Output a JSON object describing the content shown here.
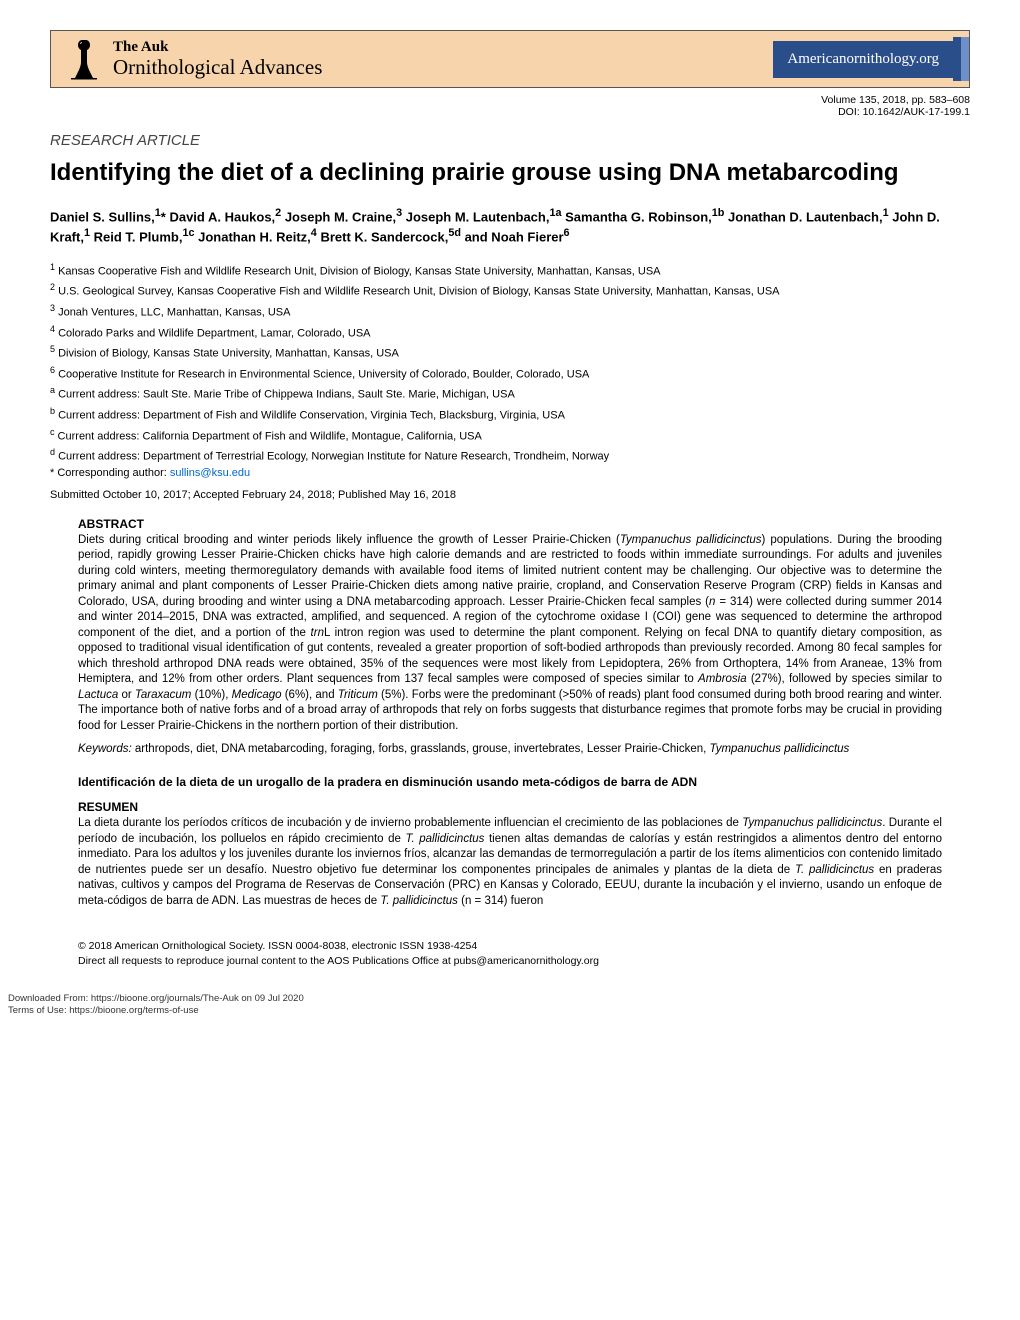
{
  "banner": {
    "the_auk": "The Auk",
    "subtitle": "Ornithological Advances",
    "url": "Americanornithology.org"
  },
  "volume_line": "Volume 135, 2018, pp. 583–608",
  "doi_line": "DOI: 10.1642/AUK-17-199.1",
  "article_type": "RESEARCH ARTICLE",
  "title": "Identifying the diet of a declining prairie grouse using DNA metabarcoding",
  "authors_html": "Daniel S. Sullins,<sup>1</sup>* David A. Haukos,<sup>2</sup> Joseph M. Craine,<sup>3</sup> Joseph M. Lautenbach,<sup>1a</sup> Samantha G. Robinson,<sup>1b</sup> Jonathan D. Lautenbach,<sup>1</sup> John D. Kraft,<sup>1</sup> Reid T. Plumb,<sup>1c</sup> Jonathan H. Reitz,<sup>4</sup> Brett K. Sandercock,<sup>5d</sup> and Noah Fierer<sup>6</sup>",
  "affiliations": [
    {
      "sup": "1",
      "text": " Kansas Cooperative Fish and Wildlife Research Unit, Division of Biology, Kansas State University, Manhattan, Kansas, USA"
    },
    {
      "sup": "2",
      "text": " U.S. Geological Survey, Kansas Cooperative Fish and Wildlife Research Unit, Division of Biology, Kansas State University, Manhattan, Kansas, USA"
    },
    {
      "sup": "3",
      "text": " Jonah Ventures, LLC, Manhattan, Kansas, USA"
    },
    {
      "sup": "4",
      "text": " Colorado Parks and Wildlife Department, Lamar, Colorado, USA"
    },
    {
      "sup": "5",
      "text": " Division of Biology, Kansas State University, Manhattan, Kansas, USA"
    },
    {
      "sup": "6",
      "text": " Cooperative Institute for Research in Environmental Science, University of Colorado, Boulder, Colorado, USA"
    },
    {
      "sup": "a",
      "text": " Current address: Sault Ste. Marie Tribe of Chippewa Indians, Sault Ste. Marie, Michigan, USA"
    },
    {
      "sup": "b",
      "text": " Current address: Department of Fish and Wildlife Conservation, Virginia Tech, Blacksburg, Virginia, USA"
    },
    {
      "sup": "c",
      "text": " Current address: California Department of Fish and Wildlife, Montague, California, USA"
    },
    {
      "sup": "d",
      "text": " Current address: Department of Terrestrial Ecology, Norwegian Institute for Nature Research, Trondheim, Norway"
    }
  ],
  "corresponding": "* Corresponding author: ",
  "corresponding_email": "sullins@ksu.edu",
  "dates": "Submitted October 10, 2017; Accepted February 24, 2018; Published May 16, 2018",
  "abstract_head": "ABSTRACT",
  "abstract_text": "Diets during critical brooding and winter periods likely influence the growth of Lesser Prairie-Chicken (<i>Tympanuchus pallidicinctus</i>) populations. During the brooding period, rapidly growing Lesser Prairie-Chicken chicks have high calorie demands and are restricted to foods within immediate surroundings. For adults and juveniles during cold winters, meeting thermoregulatory demands with available food items of limited nutrient content may be challenging. Our objective was to determine the primary animal and plant components of Lesser Prairie-Chicken diets among native prairie, cropland, and Conservation Reserve Program (CRP) fields in Kansas and Colorado, USA, during brooding and winter using a DNA metabarcoding approach. Lesser Prairie-Chicken fecal samples (<i>n</i> = 314) were collected during summer 2014 and winter 2014–2015, DNA was extracted, amplified, and sequenced. A region of the cytochrome oxidase I (COI) gene was sequenced to determine the arthropod component of the diet, and a portion of the <i>trn</i>L intron region was used to determine the plant component. Relying on fecal DNA to quantify dietary composition, as opposed to traditional visual identification of gut contents, revealed a greater proportion of soft-bodied arthropods than previously recorded. Among 80 fecal samples for which threshold arthropod DNA reads were obtained, 35% of the sequences were most likely from Lepidoptera, 26% from Orthoptera, 14% from Araneae, 13% from Hemiptera, and 12% from other orders. Plant sequences from 137 fecal samples were composed of species similar to <i>Ambrosia</i> (27%), followed by species similar to <i>Lactuca</i> or <i>Taraxacum</i> (10%), <i>Medicago</i> (6%), and <i>Triticum</i> (5%). Forbs were the predominant (>50% of reads) plant food consumed during both brood rearing and winter. The importance both of native forbs and of a broad array of arthropods that rely on forbs suggests that disturbance regimes that promote forbs may be crucial in providing food for Lesser Prairie-Chickens in the northern portion of their distribution.",
  "keywords_label": "Keywords:",
  "keywords_text": " arthropods, diet, DNA metabarcoding, foraging, forbs, grasslands, grouse, invertebrates, Lesser Prairie-Chicken, <i>Tympanuchus pallidicinctus</i>",
  "spanish_title": "Identificación de la dieta de un urogallo de la pradera en disminución usando meta-códigos de barra de ADN",
  "resumen_head": "RESUMEN",
  "resumen_text": "La dieta durante los períodos críticos de incubación y de invierno probablemente influencian el crecimiento de las poblaciones de <i>Tympanuchus pallidicinctus</i>. Durante el período de incubación, los polluelos en rápido crecimiento de <i>T. pallidicinctus</i> tienen altas demandas de calorías y están restringidos a alimentos dentro del entorno inmediato. Para los adultos y los juveniles durante los inviernos fríos, alcanzar las demandas de termorregulación a partir de los ítems alimenticios con contenido limitado de nutrientes puede ser un desafío. Nuestro objetivo fue determinar los componentes principales de animales y plantas de la dieta de <i>T. pallidicinctus</i> en praderas nativas, cultivos y campos del Programa de Reservas de Conservación (PRC) en Kansas y Colorado, EEUU, durante la incubación y el invierno, usando un enfoque de meta-códigos de barra de ADN. Las muestras de heces de <i>T. pallidicinctus</i> (n = 314) fueron",
  "copyright": "© 2018 American Ornithological Society. ISSN 0004-8038, electronic ISSN 1938-4254",
  "reproduce": "Direct all requests to reproduce journal content to the AOS Publications Office at pubs@americanornithology.org",
  "dl_from": "Downloaded From: https://bioone.org/journals/The-Auk on 09 Jul 2020",
  "terms": "Terms of Use: https://bioone.org/terms-of-use"
}
